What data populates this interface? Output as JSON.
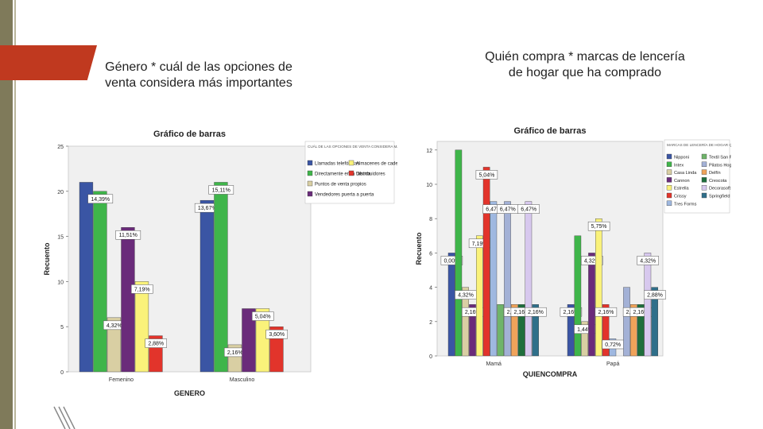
{
  "slide": {
    "title_left": "Género * cuál de las opciones de venta considera más importantes",
    "title_right": "Quién compra * marcas de lencería de hogar que ha comprado"
  },
  "chart_data": [
    {
      "type": "bar",
      "title": "Gráfico de barras",
      "xlabel": "GENERO",
      "ylabel": "Recuento",
      "ylim": [
        0,
        25
      ],
      "yticks": [
        0,
        5,
        10,
        15,
        20,
        25
      ],
      "categories": [
        "Femenino",
        "Masculino"
      ],
      "legend_title": "CUÁL DE LAS OPCIONES DE VENTA CONSIDERA MÁS IMPORTANTES",
      "legend_position": "right",
      "series": [
        {
          "name": "Llamadas telefónicas",
          "color": "#3a55a4",
          "values": [
            21,
            19
          ],
          "labels": [
            "",
            "13,67%"
          ]
        },
        {
          "name": "Directamente en la fábrica",
          "color": "#3fb54a",
          "values": [
            20,
            21
          ],
          "labels": [
            "14,39%",
            "15,11%"
          ]
        },
        {
          "name": "Puntos de venta propios",
          "color": "#d9cfa3",
          "values": [
            6,
            3
          ],
          "labels": [
            "4,32%",
            "2,16%"
          ]
        },
        {
          "name": "Vendedores puerta a puerta",
          "color": "#6a2b7a",
          "values": [
            16,
            7
          ],
          "labels": [
            "11,51%",
            ""
          ]
        },
        {
          "name": "Almacenes de cadena",
          "color": "#faf27a",
          "values": [
            10,
            7
          ],
          "labels": [
            "7,19%",
            "5,04%"
          ]
        },
        {
          "name": "Distribuidores",
          "color": "#e2342b",
          "values": [
            4,
            5
          ],
          "labels": [
            "2,88%",
            "3,60%"
          ]
        }
      ]
    },
    {
      "type": "bar",
      "title": "Gráfico de barras",
      "xlabel": "QUIENCOMPRA",
      "ylabel": "Recuento",
      "ylim": [
        0,
        12.5
      ],
      "yticks": [
        0,
        2,
        4,
        6,
        8,
        10,
        12
      ],
      "categories": [
        "Mamá",
        "Papá"
      ],
      "legend_title": "MARCAS DE LENCERÍA DE HOGAR QUE HA COMPRADO",
      "legend_position": "right",
      "series": [
        {
          "name": "Nipponi",
          "color": "#3a55a4",
          "values": [
            6,
            3
          ],
          "labels": [
            "0,00%",
            "2,16%"
          ]
        },
        {
          "name": "Intex",
          "color": "#3fb54a",
          "values": [
            12,
            7
          ],
          "labels": [
            "",
            ""
          ]
        },
        {
          "name": "Casa Linda",
          "color": "#d9cfa3",
          "values": [
            4,
            2
          ],
          "labels": [
            "4,32%",
            "1,44%"
          ]
        },
        {
          "name": "Cannon",
          "color": "#6a2b7a",
          "values": [
            3,
            6
          ],
          "labels": [
            "2,16%",
            "4,32%"
          ]
        },
        {
          "name": "Estrella",
          "color": "#faf27a",
          "values": [
            7,
            8
          ],
          "labels": [
            "7,19%",
            "5,75%"
          ]
        },
        {
          "name": "Crissy",
          "color": "#e2342b",
          "values": [
            11,
            3
          ],
          "labels": [
            "5,04%",
            "2,16%"
          ]
        },
        {
          "name": "Tres Forms",
          "color": "#9fb8e0",
          "values": [
            9,
            1
          ],
          "labels": [
            "6,47%",
            "0,72%"
          ]
        },
        {
          "name": "Textil San Pedro",
          "color": "#6fb46a",
          "values": [
            3,
            0
          ],
          "labels": [
            "",
            ""
          ]
        },
        {
          "name": "Pilatos Hogar",
          "color": "#a3b1d6",
          "values": [
            9,
            4
          ],
          "labels": [
            "6,47%",
            ""
          ]
        },
        {
          "name": "Delfín",
          "color": "#f0a35a",
          "values": [
            3,
            3
          ],
          "labels": [
            "2,88%",
            "2,88%"
          ]
        },
        {
          "name": "Crescota",
          "color": "#1f6e3d",
          "values": [
            3,
            3
          ],
          "labels": [
            "2,16%",
            "2,16%"
          ]
        },
        {
          "name": "Decorasoft",
          "color": "#d7c8ee",
          "values": [
            9,
            6
          ],
          "labels": [
            "6,47%",
            "4,32%"
          ]
        },
        {
          "name": "Springfield",
          "color": "#2f6f8a",
          "values": [
            3,
            4
          ],
          "labels": [
            "2,16%",
            "2,88%"
          ]
        }
      ]
    }
  ]
}
